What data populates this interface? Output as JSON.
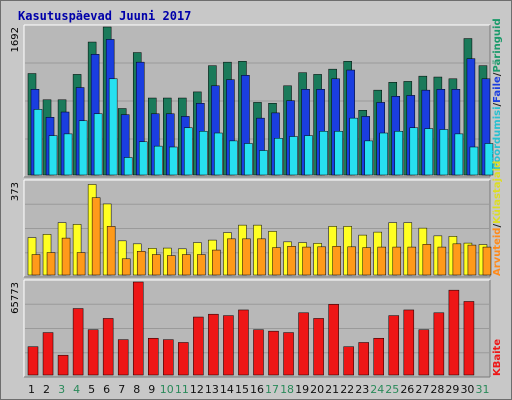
{
  "title": "Kasutuspäevad Juuni 2017",
  "colors": {
    "frame_bg": "#c8c8c8",
    "plot_bg": "#b8b8b8",
    "grid": "#9a9a9a",
    "visits": "#1a7a5a",
    "pages": "#1a3ee0",
    "files": "#27e0f0",
    "hits": "#ffff22",
    "sites": "#ff9a1a",
    "kbytes": "#ee1616",
    "weekend_label": "#2a8a5a",
    "weekday_label": "#111111"
  },
  "legend": {
    "top": [
      {
        "label": "Päringuid",
        "color": "#1a9a6a"
      },
      {
        "label": "Faile",
        "color": "#1a3ee0"
      },
      {
        "label": "Pöördumisi",
        "color": "#27c0d0"
      }
    ],
    "middle": [
      {
        "label": "Külastajaid",
        "color": "#dddd22"
      },
      {
        "label": "Arvuteid",
        "color": "#ff8a1a"
      }
    ],
    "bottom": [
      {
        "label": "KBaite",
        "color": "#ee1616"
      }
    ],
    "separator": "/"
  },
  "chart_data": [
    {
      "type": "bar",
      "panel": "top",
      "y_max_label": "1692",
      "ylim": [
        0,
        1692
      ],
      "categories": [
        "1",
        "2",
        "3",
        "4",
        "5",
        "6",
        "7",
        "8",
        "9",
        "10",
        "11",
        "12",
        "13",
        "14",
        "15",
        "16",
        "17",
        "18",
        "19",
        "20",
        "21",
        "22",
        "23",
        "24",
        "25",
        "26",
        "27",
        "28",
        "29",
        "30",
        "31"
      ],
      "weekend_days": [
        "3",
        "4",
        "10",
        "11",
        "17",
        "18",
        "24",
        "25",
        "31"
      ],
      "series": [
        {
          "name": "Päringuid",
          "values": [
            1160,
            860,
            860,
            1150,
            1520,
            1710,
            760,
            1400,
            880,
            880,
            880,
            950,
            1250,
            1290,
            1300,
            830,
            820,
            1020,
            1170,
            1150,
            1210,
            1300,
            740,
            970,
            1060,
            1070,
            1130,
            1120,
            1100,
            1560,
            1250
          ]
        },
        {
          "name": "Faile",
          "values": [
            980,
            660,
            720,
            1000,
            1380,
            1550,
            690,
            1290,
            700,
            700,
            670,
            820,
            1020,
            1090,
            1140,
            650,
            710,
            850,
            980,
            980,
            1100,
            1200,
            670,
            830,
            900,
            910,
            970,
            980,
            980,
            1330,
            1100
          ]
        },
        {
          "name": "Pöördumisi",
          "values": [
            750,
            450,
            470,
            620,
            700,
            1100,
            200,
            380,
            330,
            320,
            540,
            500,
            480,
            390,
            360,
            280,
            420,
            440,
            450,
            500,
            500,
            650,
            390,
            480,
            500,
            540,
            530,
            520,
            470,
            320,
            360
          ]
        }
      ]
    },
    {
      "type": "bar",
      "panel": "middle",
      "y_max_label": "373",
      "ylim": [
        0,
        373
      ],
      "categories": [
        "1",
        "2",
        "3",
        "4",
        "5",
        "6",
        "7",
        "8",
        "9",
        "10",
        "11",
        "12",
        "13",
        "14",
        "15",
        "16",
        "17",
        "18",
        "19",
        "20",
        "21",
        "22",
        "23",
        "24",
        "25",
        "26",
        "27",
        "28",
        "29",
        "30",
        "31"
      ],
      "series": [
        {
          "name": "Külastajaid",
          "values": [
            150,
            163,
            210,
            203,
            363,
            285,
            137,
            125,
            107,
            108,
            105,
            130,
            140,
            170,
            200,
            200,
            175,
            133,
            130,
            127,
            195,
            195,
            160,
            172,
            210,
            210,
            188,
            157,
            155,
            128,
            122
          ]
        },
        {
          "name": "Arvuteid",
          "values": [
            82,
            90,
            148,
            90,
            310,
            195,
            65,
            95,
            82,
            78,
            82,
            82,
            100,
            145,
            145,
            145,
            110,
            115,
            112,
            113,
            115,
            113,
            110,
            112,
            112,
            112,
            123,
            112,
            125,
            120,
            112
          ]
        }
      ]
    },
    {
      "type": "bar",
      "panel": "bottom",
      "y_max_label": "65773",
      "ylim": [
        0,
        65773
      ],
      "categories": [
        "1",
        "2",
        "3",
        "4",
        "5",
        "6",
        "7",
        "8",
        "9",
        "10",
        "11",
        "12",
        "13",
        "14",
        "15",
        "16",
        "17",
        "18",
        "19",
        "20",
        "21",
        "22",
        "23",
        "24",
        "25",
        "26",
        "27",
        "28",
        "29",
        "30",
        "31"
      ],
      "series": [
        {
          "name": "KBaite",
          "values": [
            20000,
            30000,
            14000,
            47000,
            32000,
            40000,
            25000,
            65773,
            26000,
            25000,
            23000,
            41000,
            43000,
            42000,
            46000,
            32000,
            31000,
            30000,
            44000,
            40000,
            50000,
            20000,
            23000,
            26000,
            42000,
            46000,
            32000,
            44000,
            60000,
            52000,
            0
          ]
        }
      ]
    }
  ]
}
